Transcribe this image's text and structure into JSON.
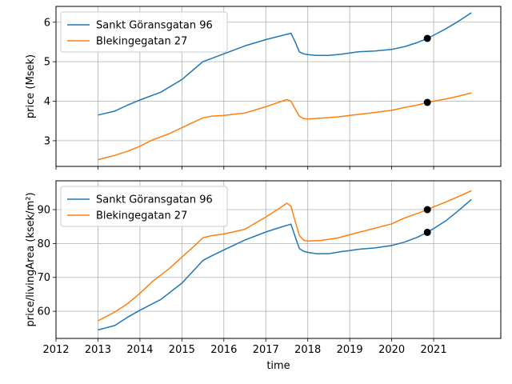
{
  "chart_data": [
    {
      "type": "line",
      "title": "",
      "xlabel": "",
      "ylabel": "price (Msek)",
      "xlim": [
        2012,
        2022.6
      ],
      "ylim": [
        2.35,
        6.4
      ],
      "yticks": [
        3,
        4,
        5,
        6
      ],
      "ytick_labels": [
        "3",
        "4",
        "5",
        "6"
      ],
      "grid": true,
      "legend": "upper-left",
      "series": [
        {
          "name": "Sankt Göransgatan 96",
          "color": "#1f77b4",
          "x": [
            2013.0,
            2013.4,
            2013.7,
            2014.0,
            2014.5,
            2015.0,
            2015.3,
            2015.5,
            2015.7,
            2016.0,
            2016.5,
            2017.0,
            2017.3,
            2017.6,
            2017.7,
            2017.8,
            2017.9,
            2018.0,
            2018.2,
            2018.5,
            2018.8,
            2019.0,
            2019.2,
            2019.6,
            2020.0,
            2020.3,
            2020.6,
            2020.85,
            2021.0,
            2021.3,
            2021.6,
            2021.9
          ],
          "y": [
            3.65,
            3.75,
            3.9,
            4.03,
            4.23,
            4.55,
            4.82,
            5.0,
            5.08,
            5.2,
            5.4,
            5.56,
            5.64,
            5.72,
            5.5,
            5.25,
            5.2,
            5.18,
            5.16,
            5.16,
            5.19,
            5.22,
            5.25,
            5.27,
            5.31,
            5.38,
            5.48,
            5.59,
            5.67,
            5.84,
            6.03,
            6.24
          ]
        },
        {
          "name": "Blekingegatan 27",
          "color": "#ff7f0e",
          "x": [
            2013.0,
            2013.4,
            2013.7,
            2014.0,
            2014.3,
            2014.7,
            2015.0,
            2015.3,
            2015.5,
            2015.7,
            2016.0,
            2016.5,
            2017.0,
            2017.3,
            2017.5,
            2017.6,
            2017.7,
            2017.8,
            2017.9,
            2018.0,
            2018.3,
            2018.7,
            2019.0,
            2019.5,
            2020.0,
            2020.3,
            2020.6,
            2020.85,
            2021.0,
            2021.3,
            2021.6,
            2021.9
          ],
          "y": [
            2.52,
            2.63,
            2.73,
            2.86,
            3.02,
            3.18,
            3.33,
            3.48,
            3.58,
            3.62,
            3.64,
            3.7,
            3.86,
            3.97,
            4.04,
            4.0,
            3.8,
            3.62,
            3.56,
            3.55,
            3.57,
            3.6,
            3.64,
            3.7,
            3.77,
            3.84,
            3.9,
            3.97,
            4.0,
            4.06,
            4.13,
            4.21
          ]
        }
      ],
      "highlight_points": [
        {
          "x": 2020.85,
          "y": 5.59
        },
        {
          "x": 2020.85,
          "y": 3.97
        }
      ]
    },
    {
      "type": "line",
      "title": "",
      "xlabel": "time",
      "ylabel": "price/livingArea (ksek/m²)",
      "xlim": [
        2012,
        2022.6
      ],
      "ylim": [
        52.0,
        98.5
      ],
      "yticks": [
        60,
        70,
        80,
        90
      ],
      "ytick_labels": [
        "60",
        "70",
        "80",
        "90"
      ],
      "xticks": [
        2012,
        2013,
        2014,
        2015,
        2016,
        2017,
        2018,
        2019,
        2020,
        2021
      ],
      "xtick_labels": [
        "2012",
        "2013",
        "2014",
        "2015",
        "2016",
        "2017",
        "2018",
        "2019",
        "2020",
        "2021"
      ],
      "grid": true,
      "legend": "upper-left",
      "series": [
        {
          "name": "Sankt Göransgatan 96",
          "color": "#1f77b4",
          "x": [
            2013.0,
            2013.4,
            2013.7,
            2014.0,
            2014.5,
            2015.0,
            2015.3,
            2015.5,
            2015.7,
            2016.0,
            2016.5,
            2017.0,
            2017.3,
            2017.6,
            2017.7,
            2017.8,
            2017.9,
            2018.0,
            2018.2,
            2018.5,
            2018.8,
            2019.0,
            2019.2,
            2019.6,
            2020.0,
            2020.3,
            2020.6,
            2020.85,
            2021.0,
            2021.3,
            2021.6,
            2021.9
          ],
          "y": [
            54.5,
            55.8,
            58.2,
            60.3,
            63.5,
            68.3,
            72.3,
            75.0,
            76.3,
            78.1,
            81.0,
            83.4,
            84.6,
            85.7,
            82.0,
            78.5,
            77.7,
            77.4,
            77.0,
            77.0,
            77.6,
            77.9,
            78.3,
            78.7,
            79.4,
            80.4,
            81.8,
            83.3,
            84.4,
            86.8,
            89.8,
            93.0
          ]
        },
        {
          "name": "Blekingegatan 27",
          "color": "#ff7f0e",
          "x": [
            2013.0,
            2013.4,
            2013.7,
            2014.0,
            2014.3,
            2014.7,
            2015.0,
            2015.3,
            2015.5,
            2015.7,
            2016.0,
            2016.5,
            2017.0,
            2017.3,
            2017.5,
            2017.6,
            2017.7,
            2017.8,
            2017.9,
            2018.0,
            2018.3,
            2018.7,
            2019.0,
            2019.5,
            2020.0,
            2020.3,
            2020.6,
            2020.85,
            2021.0,
            2021.3,
            2021.6,
            2021.9
          ],
          "y": [
            57.2,
            59.8,
            62.2,
            65.3,
            68.8,
            72.6,
            76.0,
            79.3,
            81.7,
            82.3,
            82.8,
            84.2,
            87.8,
            90.2,
            91.9,
            91.0,
            86.5,
            82.4,
            81.0,
            80.7,
            80.9,
            81.6,
            82.6,
            84.2,
            85.8,
            87.5,
            88.8,
            90.0,
            90.8,
            92.3,
            93.9,
            95.6
          ]
        }
      ],
      "highlight_points": [
        {
          "x": 2020.85,
          "y": 83.3
        },
        {
          "x": 2020.85,
          "y": 90.0
        }
      ]
    }
  ]
}
